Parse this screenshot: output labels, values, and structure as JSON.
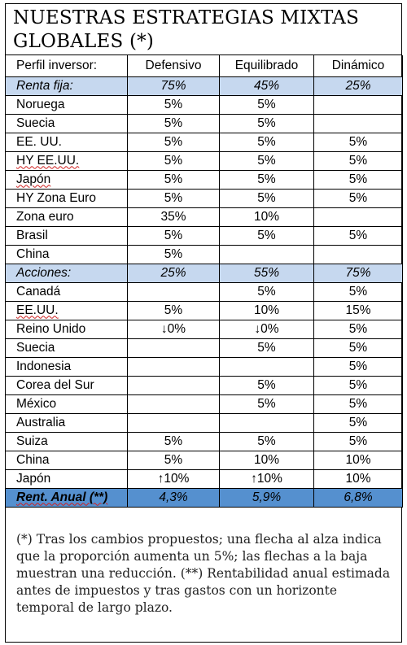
{
  "title": "NUESTRAS ESTRATEGIAS MIXTAS GLOBALES (*)",
  "header": {
    "profile_label": "Perfil inversor:",
    "columns": [
      "Defensivo",
      "Equilibrado",
      "Dinámico"
    ]
  },
  "fixed_income": {
    "label": "Renta fija:",
    "values": [
      "75%",
      "45%",
      "25%"
    ],
    "rows": [
      {
        "label": "Noruega",
        "values": [
          "5%",
          "5%",
          ""
        ]
      },
      {
        "label": "Suecia",
        "values": [
          "5%",
          "5%",
          ""
        ]
      },
      {
        "label": "EE. UU.",
        "values": [
          "5%",
          "5%",
          "5%"
        ]
      },
      {
        "label": "HY EE.UU.",
        "values": [
          "5%",
          "5%",
          "5%"
        ]
      },
      {
        "label": "Japón",
        "values": [
          "5%",
          "5%",
          "5%"
        ]
      },
      {
        "label": "HY Zona Euro",
        "values": [
          "5%",
          "5%",
          "5%"
        ]
      },
      {
        "label": "Zona euro",
        "values": [
          "35%",
          "10%",
          ""
        ]
      },
      {
        "label": "Brasil",
        "values": [
          "5%",
          "5%",
          "5%"
        ]
      },
      {
        "label": "China",
        "values": [
          "5%",
          "",
          ""
        ]
      }
    ]
  },
  "equities": {
    "label": "Acciones:",
    "values": [
      "25%",
      "55%",
      "75%"
    ],
    "rows": [
      {
        "label": "Canadá",
        "values": [
          "",
          "5%",
          "5%"
        ]
      },
      {
        "label": "EE.UU.",
        "values": [
          "5%",
          "10%",
          "15%"
        ]
      },
      {
        "label": "Reino Unido",
        "values": [
          "↓0%",
          "↓0%",
          "5%"
        ]
      },
      {
        "label": "Suecia",
        "values": [
          "",
          "5%",
          "5%"
        ]
      },
      {
        "label": "Indonesia",
        "values": [
          "",
          "",
          "5%"
        ]
      },
      {
        "label": "Corea del Sur",
        "values": [
          "",
          "5%",
          "5%"
        ]
      },
      {
        "label": "México",
        "values": [
          "",
          "5%",
          "5%"
        ]
      },
      {
        "label": "Australia",
        "values": [
          "",
          "",
          "5%"
        ]
      },
      {
        "label": "Suiza",
        "values": [
          "5%",
          "5%",
          "5%"
        ]
      },
      {
        "label": "China",
        "values": [
          "5%",
          "10%",
          "10%"
        ]
      },
      {
        "label": "Japón",
        "values": [
          "↑10%",
          "↑10%",
          "10%"
        ]
      }
    ]
  },
  "annual_return": {
    "label": "Rent. Anual (**)",
    "values": [
      "4,3%",
      "5,9%",
      "6,8%"
    ]
  },
  "footnote": "(*) Tras los cambios propuestos; una flecha al alza indica que la proporción aumenta un 5%; las flechas a la baja muestran una reducción. (**) Rentabilidad anual estimada antes de impuestos y tras gastos con un horizonte temporal de largo plazo.",
  "colors": {
    "section_row": "#c6d8ef",
    "total_row": "#5590cf",
    "spellcheck_underline": "#d02020"
  }
}
